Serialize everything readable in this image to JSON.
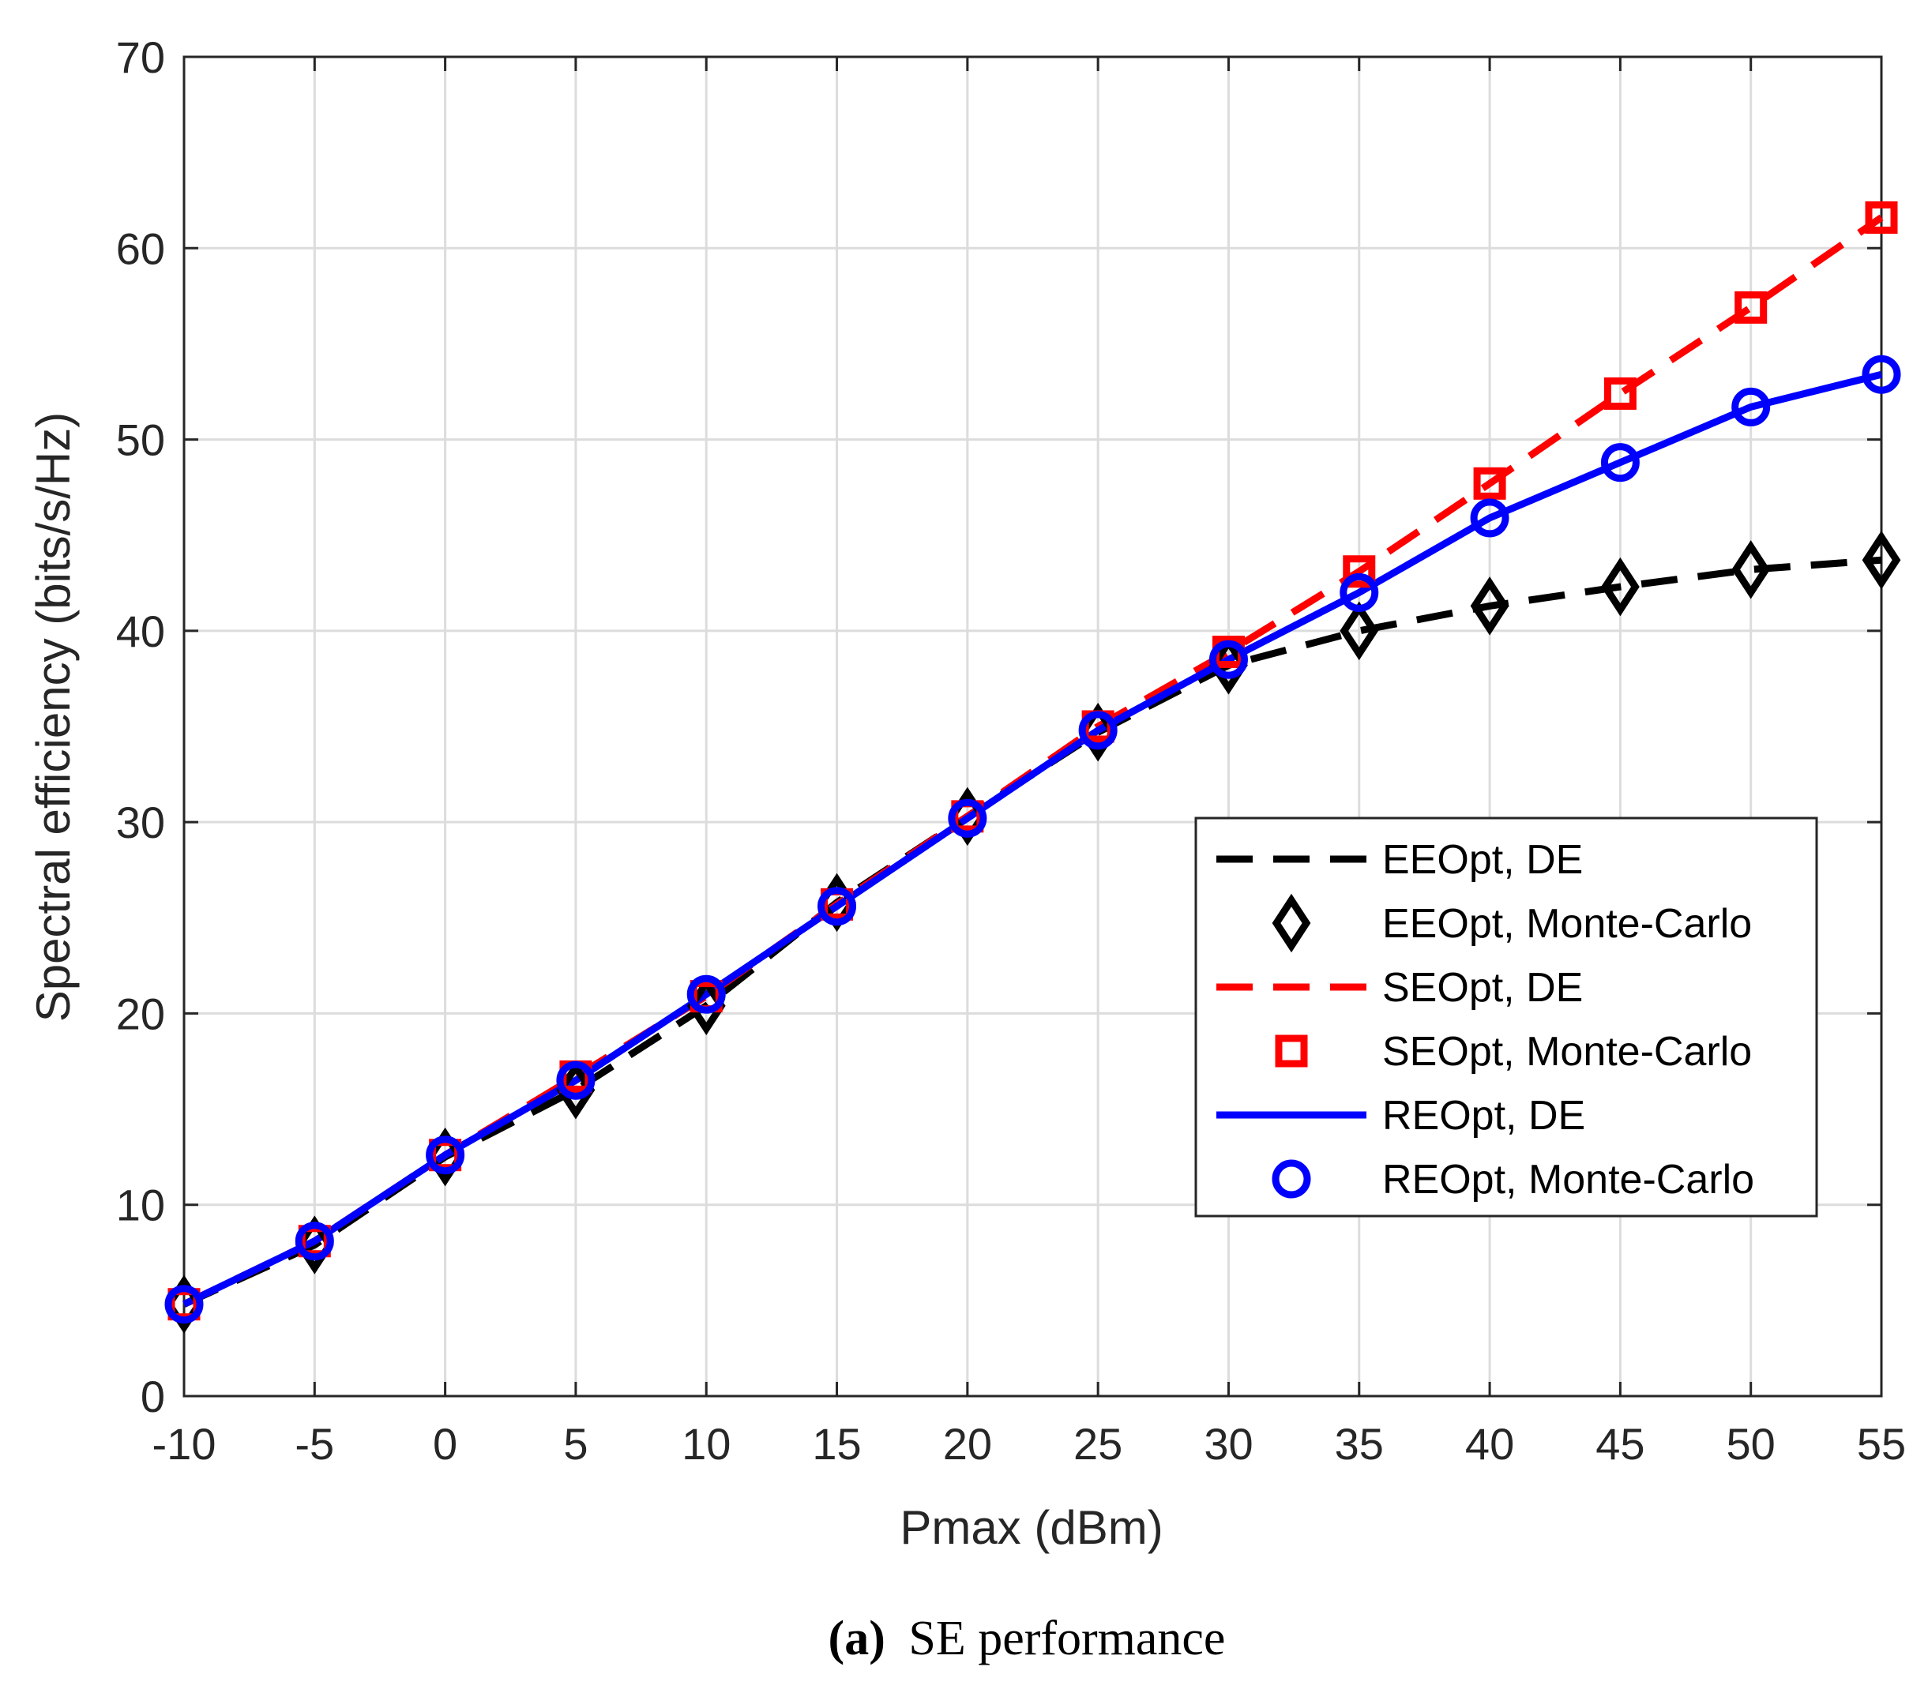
{
  "chart_data": {
    "type": "line",
    "xlabel": "Pmax (dBm)",
    "ylabel": "Spectral efficiency (bits/s/Hz)",
    "xlim": [
      -10,
      55
    ],
    "ylim": [
      0,
      70
    ],
    "grid": true,
    "legend_position": "middle-right",
    "x_ticks": [
      "-10",
      "-5",
      "0",
      "5",
      "10",
      "15",
      "20",
      "25",
      "30",
      "35",
      "40",
      "45",
      "50",
      "55"
    ],
    "y_ticks": [
      "0",
      "10",
      "20",
      "30",
      "40",
      "50",
      "60",
      "70"
    ],
    "x": [
      -10,
      -5,
      0,
      5,
      10,
      15,
      20,
      25,
      30,
      35,
      40,
      45,
      50,
      55
    ],
    "series": [
      {
        "name": "EEOpt, DE",
        "color": "#000000",
        "line": "dashed",
        "marker": "none",
        "values": [
          4.8,
          7.9,
          12.5,
          16.0,
          20.4,
          25.8,
          30.3,
          34.7,
          38.2,
          40.0,
          41.3,
          42.3,
          43.2,
          43.7
        ]
      },
      {
        "name": "EEOpt, Monte-Carlo",
        "color": "#000000",
        "line": "none",
        "marker": "diamond",
        "values": [
          4.8,
          7.9,
          12.5,
          16.0,
          20.4,
          25.8,
          30.3,
          34.7,
          38.2,
          40.0,
          41.3,
          42.3,
          43.2,
          43.7
        ]
      },
      {
        "name": "SEOpt, DE",
        "color": "#ff0000",
        "line": "dashed",
        "marker": "none",
        "values": [
          4.8,
          8.1,
          12.6,
          16.7,
          20.9,
          25.7,
          30.3,
          35.0,
          38.9,
          43.1,
          47.7,
          52.4,
          56.9,
          61.6
        ]
      },
      {
        "name": "SEOpt, Monte-Carlo",
        "color": "#ff0000",
        "line": "none",
        "marker": "square",
        "values": [
          4.8,
          8.1,
          12.6,
          16.7,
          20.9,
          25.7,
          30.3,
          35.0,
          38.9,
          43.1,
          47.7,
          52.4,
          56.9,
          61.6
        ]
      },
      {
        "name": "REOpt, DE",
        "color": "#0000ff",
        "line": "solid",
        "marker": "none",
        "values": [
          4.8,
          8.1,
          12.6,
          16.5,
          21.0,
          25.6,
          30.2,
          34.8,
          38.5,
          42.0,
          45.9,
          48.8,
          51.7,
          53.4
        ]
      },
      {
        "name": "REOpt, Monte-Carlo",
        "color": "#0000ff",
        "line": "none",
        "marker": "circle",
        "values": [
          4.8,
          8.1,
          12.6,
          16.5,
          21.0,
          25.6,
          30.2,
          34.8,
          38.5,
          42.0,
          45.9,
          48.8,
          51.7,
          53.4
        ]
      }
    ],
    "caption_label": "(a)",
    "caption_text": "SE performance"
  }
}
